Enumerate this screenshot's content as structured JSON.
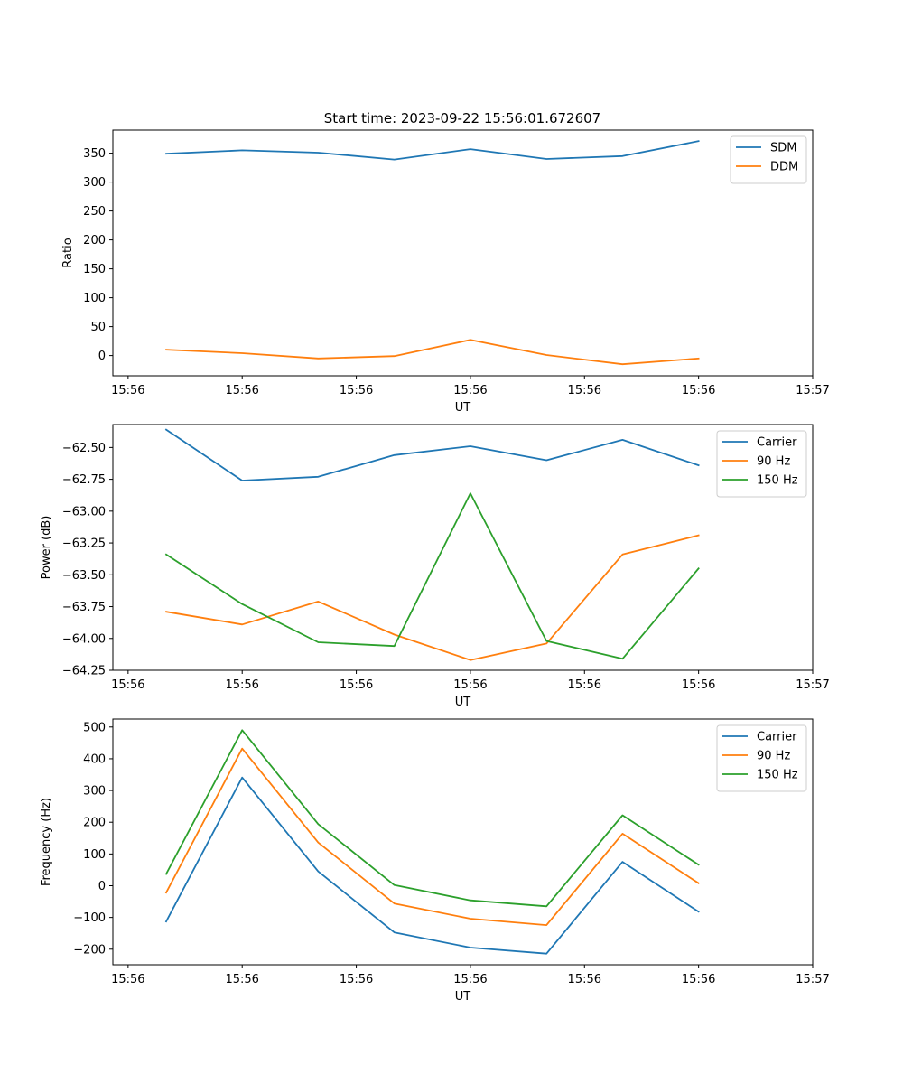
{
  "figure_title": "Start time: 2023-09-22 15:56:01.672607",
  "chart_data": [
    {
      "type": "line",
      "title": "Start time: 2023-09-22 15:56:01.672607",
      "xlabel": "UT",
      "ylabel": "Ratio",
      "x": [
        1,
        2,
        3,
        4,
        5,
        6,
        7,
        8
      ],
      "xlim": [
        0.3,
        9.5
      ],
      "xticks": [
        0.5,
        2,
        3.5,
        5,
        6.5,
        8,
        9.5
      ],
      "xtick_labels": [
        "15:56",
        "15:56",
        "15:56",
        "15:56",
        "15:56",
        "15:56",
        "15:57"
      ],
      "ylim": [
        -35,
        390
      ],
      "yticks": [
        0,
        50,
        100,
        150,
        200,
        250,
        300,
        350
      ],
      "ytick_labels": [
        "0",
        "50",
        "100",
        "150",
        "200",
        "250",
        "300",
        "350"
      ],
      "legend_position": "top-right",
      "series": [
        {
          "name": "SDM",
          "color": "#1f77b4",
          "values": [
            349,
            355,
            351,
            339,
            357,
            340,
            345,
            371
          ]
        },
        {
          "name": "DDM",
          "color": "#ff7f0e",
          "values": [
            10,
            4,
            -5,
            -1,
            27,
            1,
            -15,
            -5
          ]
        }
      ]
    },
    {
      "type": "line",
      "xlabel": "UT",
      "ylabel": "Power (dB)",
      "x": [
        1,
        2,
        3,
        4,
        5,
        6,
        7,
        8
      ],
      "xlim": [
        0.3,
        9.5
      ],
      "xticks": [
        0.5,
        2,
        3.5,
        5,
        6.5,
        8,
        9.5
      ],
      "xtick_labels": [
        "15:56",
        "15:56",
        "15:56",
        "15:56",
        "15:56",
        "15:56",
        "15:57"
      ],
      "ylim": [
        -64.25,
        -62.32
      ],
      "yticks": [
        -64.25,
        -64.0,
        -63.75,
        -63.5,
        -63.25,
        -63.0,
        -62.75,
        -62.5
      ],
      "ytick_labels": [
        "−64.25",
        "−64.00",
        "−63.75",
        "−63.50",
        "−63.25",
        "−63.00",
        "−62.75",
        "−62.50"
      ],
      "legend_position": "top-right",
      "series": [
        {
          "name": "Carrier",
          "color": "#1f77b4",
          "values": [
            -62.36,
            -62.76,
            -62.73,
            -62.56,
            -62.49,
            -62.6,
            -62.44,
            -62.64
          ]
        },
        {
          "name": "90 Hz",
          "color": "#ff7f0e",
          "values": [
            -63.79,
            -63.89,
            -63.71,
            -63.97,
            -64.17,
            -64.04,
            -63.34,
            -63.19
          ]
        },
        {
          "name": "150 Hz",
          "color": "#2ca02c",
          "values": [
            -63.34,
            -63.73,
            -64.03,
            -64.06,
            -62.86,
            -64.02,
            -64.16,
            -63.45
          ]
        }
      ]
    },
    {
      "type": "line",
      "xlabel": "UT",
      "ylabel": "Frequency (Hz)",
      "x": [
        1,
        2,
        3,
        4,
        5,
        6,
        7,
        8
      ],
      "xlim": [
        0.3,
        9.5
      ],
      "xticks": [
        0.5,
        2,
        3.5,
        5,
        6.5,
        8,
        9.5
      ],
      "xtick_labels": [
        "15:56",
        "15:56",
        "15:56",
        "15:56",
        "15:56",
        "15:56",
        "15:57"
      ],
      "ylim": [
        -249,
        525
      ],
      "yticks": [
        -200,
        -100,
        0,
        100,
        200,
        300,
        400,
        500
      ],
      "ytick_labels": [
        "−200",
        "−100",
        "0",
        "100",
        "200",
        "300",
        "400",
        "500"
      ],
      "legend_position": "top-right",
      "series": [
        {
          "name": "Carrier",
          "color": "#1f77b4",
          "values": [
            -113,
            341,
            45,
            -147,
            -195,
            -214,
            75,
            -82
          ]
        },
        {
          "name": "90 Hz",
          "color": "#ff7f0e",
          "values": [
            -22,
            432,
            136,
            -56,
            -104,
            -124,
            164,
            8
          ]
        },
        {
          "name": "150 Hz",
          "color": "#2ca02c",
          "values": [
            37,
            490,
            194,
            2,
            -46,
            -65,
            222,
            66
          ]
        }
      ]
    }
  ]
}
